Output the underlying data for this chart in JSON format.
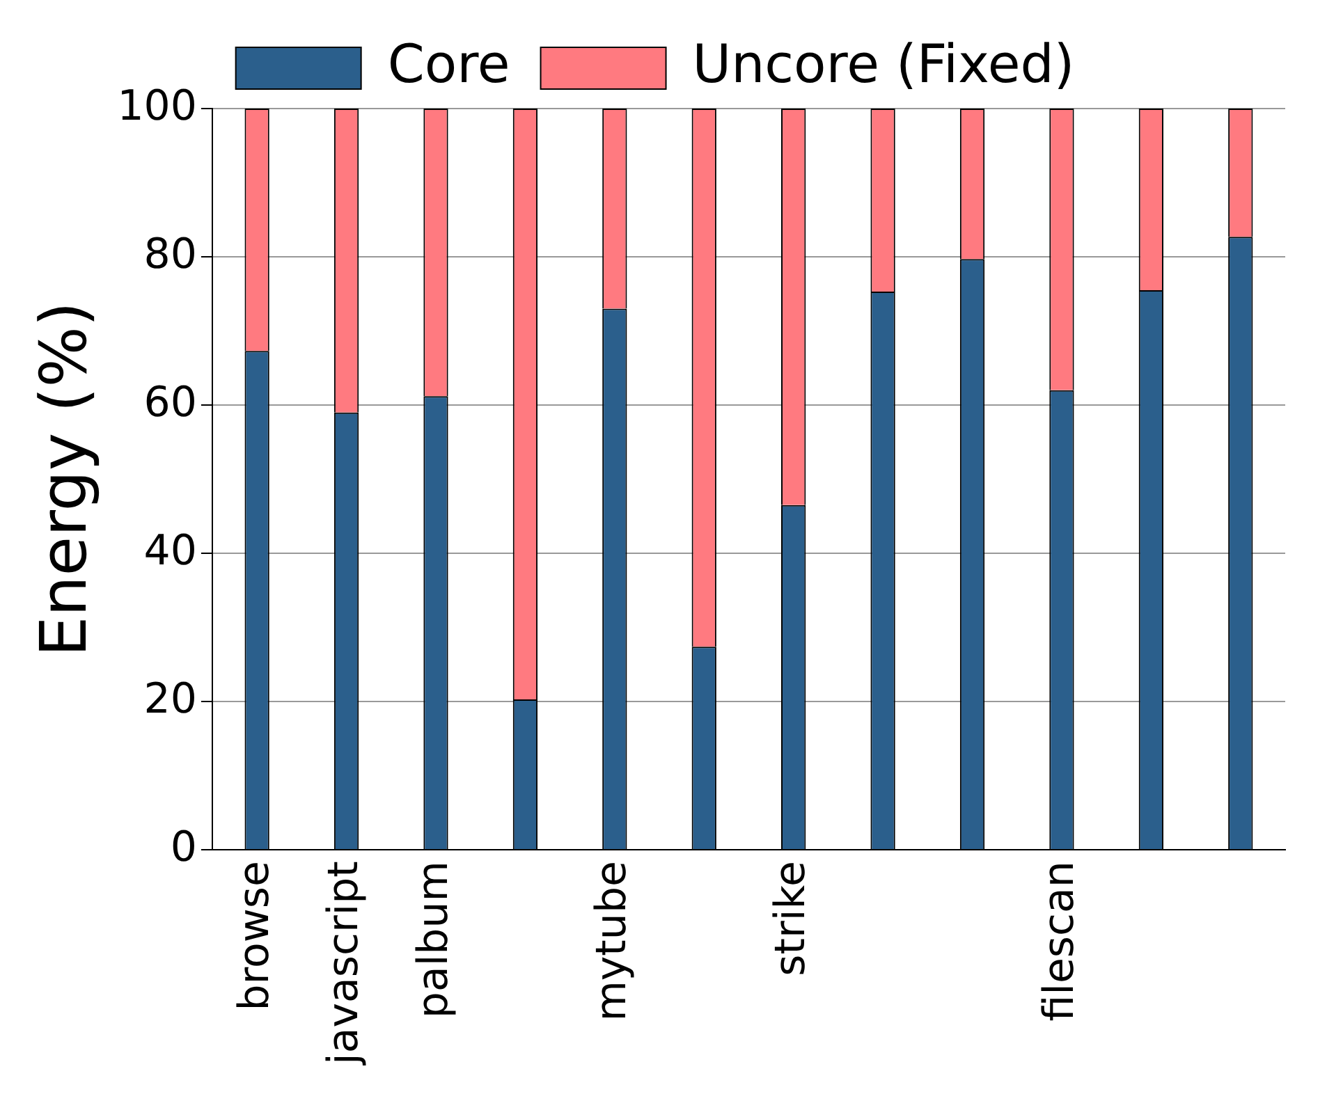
{
  "chart_data": {
    "type": "bar",
    "ylabel": "Energy (%)",
    "stacked": true,
    "grid": "y",
    "legend": "top",
    "categories": [
      "browse",
      "javascript",
      "palbum",
      null,
      "mytube",
      null,
      "strike",
      null,
      null,
      "filescan",
      null,
      null
    ],
    "series": [
      {
        "name": "Core",
        "color": "#2b5f8c",
        "values": [
          67.3,
          59,
          61.2,
          20.3,
          73,
          27.4,
          46.5,
          75.3,
          79.7,
          62,
          75.5,
          82.7
        ]
      },
      {
        "name": "Uncore (Fixed)",
        "color": "#ff7a80",
        "values": [
          32.7,
          41,
          38.8,
          79.7,
          27,
          72.6,
          53.5,
          24.7,
          20.3,
          38,
          24.5,
          17.3
        ]
      }
    ],
    "ylim": [
      0,
      100
    ],
    "yticks": [
      0,
      20,
      40,
      60,
      80,
      100
    ]
  }
}
